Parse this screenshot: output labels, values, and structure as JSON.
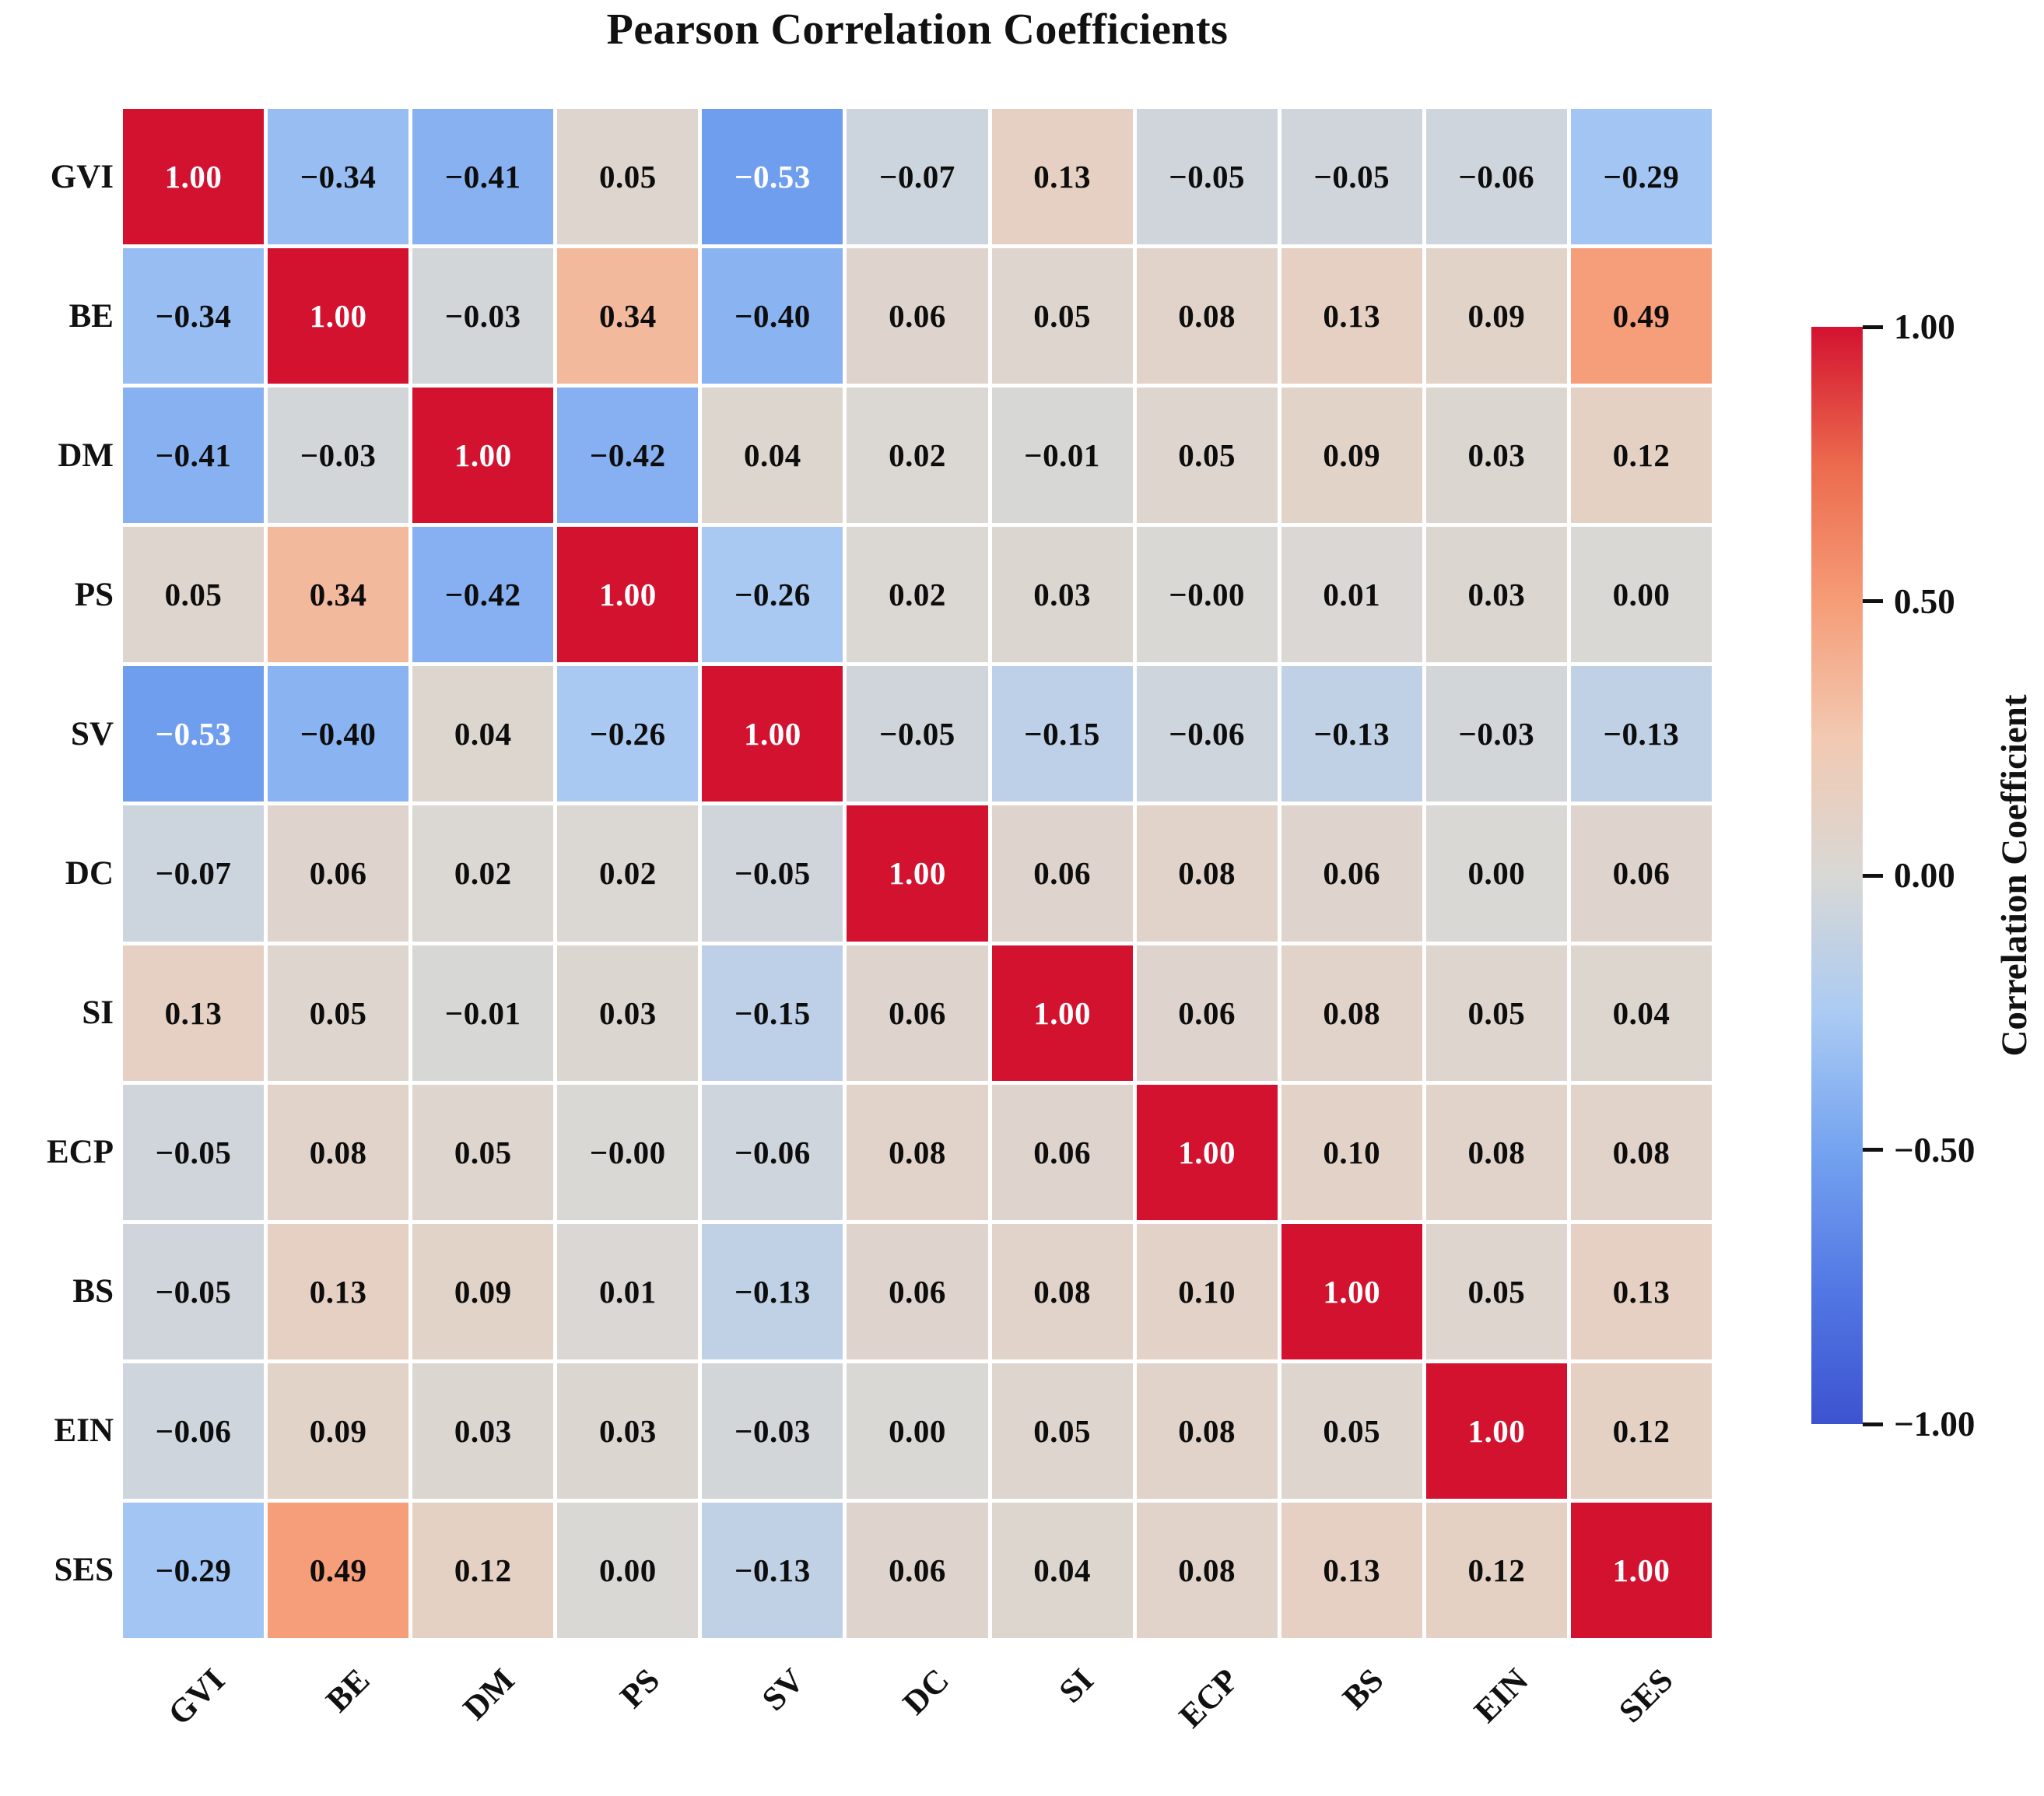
{
  "chart_data": {
    "type": "heatmap",
    "title": "Pearson Correlation Coefficients",
    "variables": [
      "GVI",
      "BE",
      "DM",
      "PS",
      "SV",
      "DC",
      "SI",
      "ECP",
      "BS",
      "EIN",
      "SES"
    ],
    "values": [
      [
        1.0,
        -0.34,
        -0.41,
        0.05,
        -0.53,
        -0.07,
        0.13,
        -0.05,
        -0.05,
        -0.06,
        -0.29
      ],
      [
        -0.34,
        1.0,
        -0.03,
        0.34,
        -0.4,
        0.06,
        0.05,
        0.08,
        0.13,
        0.09,
        0.49
      ],
      [
        -0.41,
        -0.03,
        1.0,
        -0.42,
        0.04,
        0.02,
        -0.01,
        0.05,
        0.09,
        0.03,
        0.12
      ],
      [
        0.05,
        0.34,
        -0.42,
        1.0,
        -0.26,
        0.02,
        0.03,
        -0.0,
        0.01,
        0.03,
        0.0
      ],
      [
        -0.53,
        -0.4,
        0.04,
        -0.26,
        1.0,
        -0.05,
        -0.15,
        -0.06,
        -0.13,
        -0.03,
        -0.13
      ],
      [
        -0.07,
        0.06,
        0.02,
        0.02,
        -0.05,
        1.0,
        0.06,
        0.08,
        0.06,
        0.0,
        0.06
      ],
      [
        0.13,
        0.05,
        -0.01,
        0.03,
        -0.15,
        0.06,
        1.0,
        0.06,
        0.08,
        0.05,
        0.04
      ],
      [
        -0.05,
        0.08,
        0.05,
        -0.0,
        -0.06,
        0.08,
        0.06,
        1.0,
        0.1,
        0.08,
        0.08
      ],
      [
        -0.05,
        0.13,
        0.09,
        0.01,
        -0.13,
        0.06,
        0.08,
        0.1,
        1.0,
        0.05,
        0.13
      ],
      [
        -0.06,
        0.09,
        0.03,
        0.03,
        -0.03,
        0.0,
        0.05,
        0.08,
        0.05,
        1.0,
        0.12
      ],
      [
        -0.29,
        0.49,
        0.12,
        0.0,
        -0.13,
        0.06,
        0.04,
        0.08,
        0.13,
        0.12,
        1.0
      ]
    ],
    "cell_labels": [
      [
        "1.00",
        "−0.34",
        "−0.41",
        "0.05",
        "−0.53",
        "−0.07",
        "0.13",
        "−0.05",
        "−0.05",
        "−0.06",
        "−0.29"
      ],
      [
        "−0.34",
        "1.00",
        "−0.03",
        "0.34",
        "−0.40",
        "0.06",
        "0.05",
        "0.08",
        "0.13",
        "0.09",
        "0.49"
      ],
      [
        "−0.41",
        "−0.03",
        "1.00",
        "−0.42",
        "0.04",
        "0.02",
        "−0.01",
        "0.05",
        "0.09",
        "0.03",
        "0.12"
      ],
      [
        "0.05",
        "0.34",
        "−0.42",
        "1.00",
        "−0.26",
        "0.02",
        "0.03",
        "−0.00",
        "0.01",
        "0.03",
        "0.00"
      ],
      [
        "−0.53",
        "−0.40",
        "0.04",
        "−0.26",
        "1.00",
        "−0.05",
        "−0.15",
        "−0.06",
        "−0.13",
        "−0.03",
        "−0.13"
      ],
      [
        "−0.07",
        "0.06",
        "0.02",
        "0.02",
        "−0.05",
        "1.00",
        "0.06",
        "0.08",
        "0.06",
        "0.00",
        "0.06"
      ],
      [
        "0.13",
        "0.05",
        "−0.01",
        "0.03",
        "−0.15",
        "0.06",
        "1.00",
        "0.06",
        "0.08",
        "0.05",
        "0.04"
      ],
      [
        "−0.05",
        "0.08",
        "0.05",
        "−0.00",
        "−0.06",
        "0.08",
        "0.06",
        "1.00",
        "0.10",
        "0.08",
        "0.08"
      ],
      [
        "−0.05",
        "0.13",
        "0.09",
        "0.01",
        "−0.13",
        "0.06",
        "0.08",
        "0.10",
        "1.00",
        "0.05",
        "0.13"
      ],
      [
        "−0.06",
        "0.09",
        "0.03",
        "0.03",
        "−0.03",
        "0.00",
        "0.05",
        "0.08",
        "0.05",
        "1.00",
        "0.12"
      ],
      [
        "−0.29",
        "0.49",
        "0.12",
        "0.00",
        "−0.13",
        "0.06",
        "0.04",
        "0.08",
        "0.13",
        "0.12",
        "1.00"
      ]
    ],
    "colorbar": {
      "label": "Correlation Coefficient",
      "range": [
        -1,
        1
      ],
      "ticks": [
        {
          "value": 1.0,
          "label": "1.00"
        },
        {
          "value": 0.5,
          "label": "0.50"
        },
        {
          "value": 0.0,
          "label": "0.00"
        },
        {
          "value": -0.5,
          "label": "−0.50"
        },
        {
          "value": -1.0,
          "label": "−1.00"
        }
      ]
    },
    "colormap_stops": [
      [
        -1.0,
        "#3c53d0"
      ],
      [
        -0.75,
        "#5378e4"
      ],
      [
        -0.5,
        "#74a3f0"
      ],
      [
        -0.25,
        "#abcbf3"
      ],
      [
        0.0,
        "#d9d8d5"
      ],
      [
        0.25,
        "#f2c9b2"
      ],
      [
        0.5,
        "#f69c77"
      ],
      [
        0.75,
        "#ec6a4d"
      ],
      [
        1.0,
        "#d31230"
      ]
    ],
    "text_colors": {
      "dark": "#0d0d0d",
      "light": "#ffffff"
    },
    "grid": true,
    "legend_position": "right-colorbar"
  }
}
